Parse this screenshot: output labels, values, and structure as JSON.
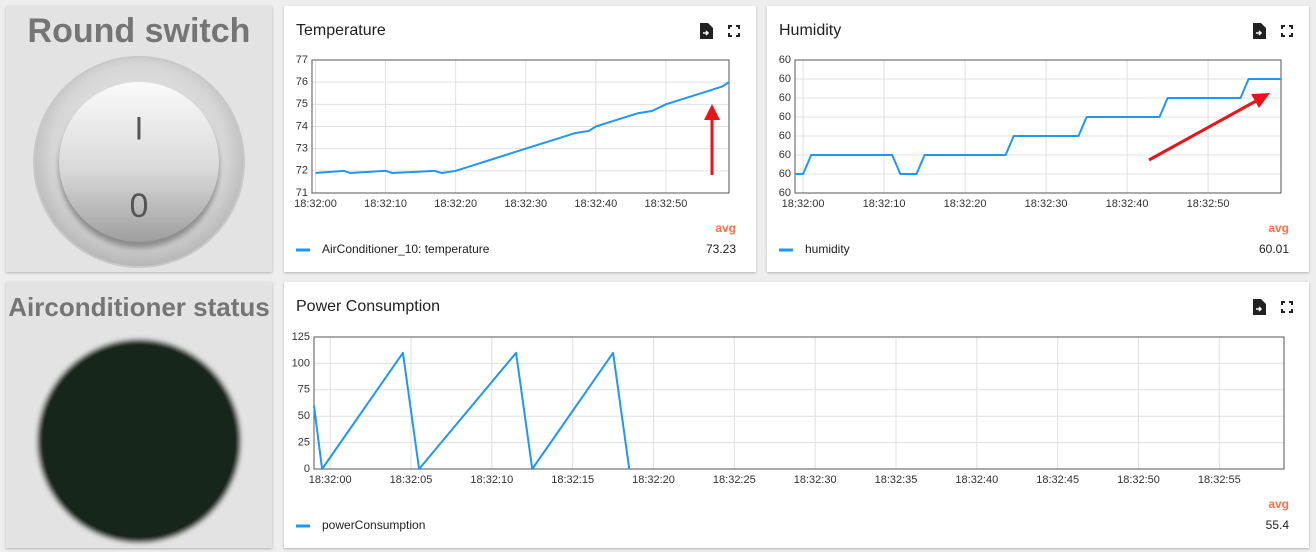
{
  "widgets": {
    "switch": {
      "title": "Round switch",
      "on_label": "I",
      "off_label": "0"
    },
    "status": {
      "title": "Airconditioner status"
    }
  },
  "chart_data": [
    {
      "type": "line",
      "title": "Temperature",
      "x": [
        0,
        4,
        5,
        10,
        11,
        17,
        18,
        20,
        22,
        25,
        28,
        31,
        34,
        37,
        39,
        40,
        43,
        46,
        48,
        50,
        53,
        56,
        58,
        59
      ],
      "series": [
        {
          "name": "AirConditioner_10: temperature",
          "color": "#2196f3",
          "values": [
            71.9,
            72.0,
            71.9,
            72.0,
            71.9,
            72.0,
            71.9,
            72.0,
            72.2,
            72.5,
            72.8,
            73.1,
            73.4,
            73.7,
            73.8,
            74.0,
            74.3,
            74.6,
            74.7,
            75.0,
            75.3,
            75.6,
            75.8,
            76.0
          ],
          "avg": 73.23
        }
      ],
      "legend_header": "avg",
      "xlim": [
        -0.5,
        59
      ],
      "xticks": [
        {
          "value": 0,
          "label": "18:32:00"
        },
        {
          "value": 10,
          "label": "18:32:10"
        },
        {
          "value": 20,
          "label": "18:32:20"
        },
        {
          "value": 30,
          "label": "18:32:30"
        },
        {
          "value": 40,
          "label": "18:32:40"
        },
        {
          "value": 50,
          "label": "18:32:50"
        }
      ],
      "ylim": [
        71,
        77
      ],
      "yticks": [
        71,
        72,
        73,
        74,
        75,
        76,
        77
      ],
      "grid": true
    },
    {
      "type": "line",
      "title": "Humidity",
      "x": [
        -1,
        0,
        1,
        11,
        12,
        14,
        15,
        25,
        26,
        34,
        35,
        44,
        45,
        54,
        55,
        59
      ],
      "series": [
        {
          "name": "humidity",
          "color": "#2196f3",
          "values": [
            59.98,
            59.98,
            59.99,
            59.99,
            59.98,
            59.98,
            59.99,
            59.99,
            60.0,
            60.0,
            60.01,
            60.01,
            60.02,
            60.02,
            60.03,
            60.03
          ],
          "avg": 60.01
        }
      ],
      "legend_header": "avg",
      "xlim": [
        -1,
        59
      ],
      "xticks": [
        {
          "value": 0,
          "label": "18:32:00"
        },
        {
          "value": 10,
          "label": "18:32:10"
        },
        {
          "value": 20,
          "label": "18:32:20"
        },
        {
          "value": 30,
          "label": "18:32:30"
        },
        {
          "value": 40,
          "label": "18:32:40"
        },
        {
          "value": 50,
          "label": "18:32:50"
        }
      ],
      "ylim": [
        59.97,
        60.04
      ],
      "yticks": [
        {
          "value": 59.97,
          "label": "60"
        },
        {
          "value": 59.98,
          "label": "60"
        },
        {
          "value": 59.99,
          "label": "60"
        },
        {
          "value": 60.0,
          "label": "60"
        },
        {
          "value": 60.01,
          "label": "60"
        },
        {
          "value": 60.02,
          "label": "60"
        },
        {
          "value": 60.03,
          "label": "60"
        },
        {
          "value": 60.04,
          "label": "60"
        }
      ],
      "grid": true
    },
    {
      "type": "line",
      "title": "Power Consumption",
      "x": [
        -1,
        -0.5,
        4.5,
        5.5,
        11.5,
        12.5,
        17.5,
        18.5
      ],
      "series": [
        {
          "name": "powerConsumption",
          "color": "#2196f3",
          "values": [
            60,
            0,
            110,
            0,
            110,
            0,
            110,
            0
          ],
          "avg": 55.4
        }
      ],
      "legend_header": "avg",
      "xlim": [
        -1,
        59
      ],
      "xticks": [
        {
          "value": 0,
          "label": "18:32:00"
        },
        {
          "value": 5,
          "label": "18:32:05"
        },
        {
          "value": 10,
          "label": "18:32:10"
        },
        {
          "value": 15,
          "label": "18:32:15"
        },
        {
          "value": 20,
          "label": "18:32:20"
        },
        {
          "value": 25,
          "label": "18:32:25"
        },
        {
          "value": 30,
          "label": "18:32:30"
        },
        {
          "value": 35,
          "label": "18:32:35"
        },
        {
          "value": 40,
          "label": "18:32:40"
        },
        {
          "value": 45,
          "label": "18:32:45"
        },
        {
          "value": 50,
          "label": "18:32:50"
        },
        {
          "value": 55,
          "label": "18:32:55"
        }
      ],
      "ylim": [
        0,
        125
      ],
      "yticks": [
        0,
        25,
        50,
        75,
        100,
        125
      ],
      "grid": true
    }
  ]
}
